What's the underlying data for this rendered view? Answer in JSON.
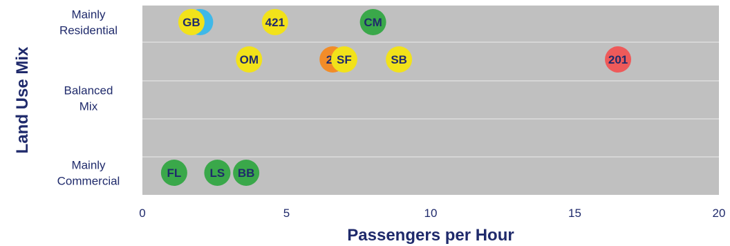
{
  "chart_data": {
    "type": "scatter",
    "title": "",
    "xlabel": "Passengers per Hour",
    "ylabel": "Land Use Mix",
    "xlim": [
      0,
      20
    ],
    "x_ticks": [
      "0",
      "5",
      "10",
      "15",
      "20"
    ],
    "grid": true,
    "legend": "none",
    "background_color": "#c0c0c0",
    "rows": [
      {
        "label_lines": [
          "Mainly",
          "Residential"
        ]
      },
      {
        "label_lines": []
      },
      {
        "label_lines": [
          "Balanced",
          "Mix"
        ]
      },
      {
        "label_lines": []
      },
      {
        "label_lines": [
          "Mainly",
          "Commercial"
        ]
      }
    ],
    "points": [
      {
        "label": "B",
        "x": 2.0,
        "row": 0,
        "color": "#3fb8e8"
      },
      {
        "label": "GB",
        "x": 1.7,
        "row": 0,
        "color": "#f2e21a"
      },
      {
        "label": "421",
        "x": 4.6,
        "row": 0,
        "color": "#f2e21a"
      },
      {
        "label": "CM",
        "x": 8.0,
        "row": 0,
        "color": "#3aa84a"
      },
      {
        "label": "OM",
        "x": 3.7,
        "row": 1,
        "color": "#f2e21a"
      },
      {
        "label": "22",
        "x": 6.6,
        "row": 1,
        "color": "#f28c28"
      },
      {
        "label": "SF",
        "x": 7.0,
        "row": 1,
        "color": "#f2e21a"
      },
      {
        "label": "SB",
        "x": 8.9,
        "row": 1,
        "color": "#f2e21a"
      },
      {
        "label": "201",
        "x": 16.5,
        "row": 1,
        "color": "#ee5a5a"
      },
      {
        "label": "FL",
        "x": 1.1,
        "row": 4,
        "color": "#3aa84a"
      },
      {
        "label": "LS",
        "x": 2.6,
        "row": 4,
        "color": "#3aa84a"
      },
      {
        "label": "BB",
        "x": 3.6,
        "row": 4,
        "color": "#3aa84a"
      }
    ]
  }
}
